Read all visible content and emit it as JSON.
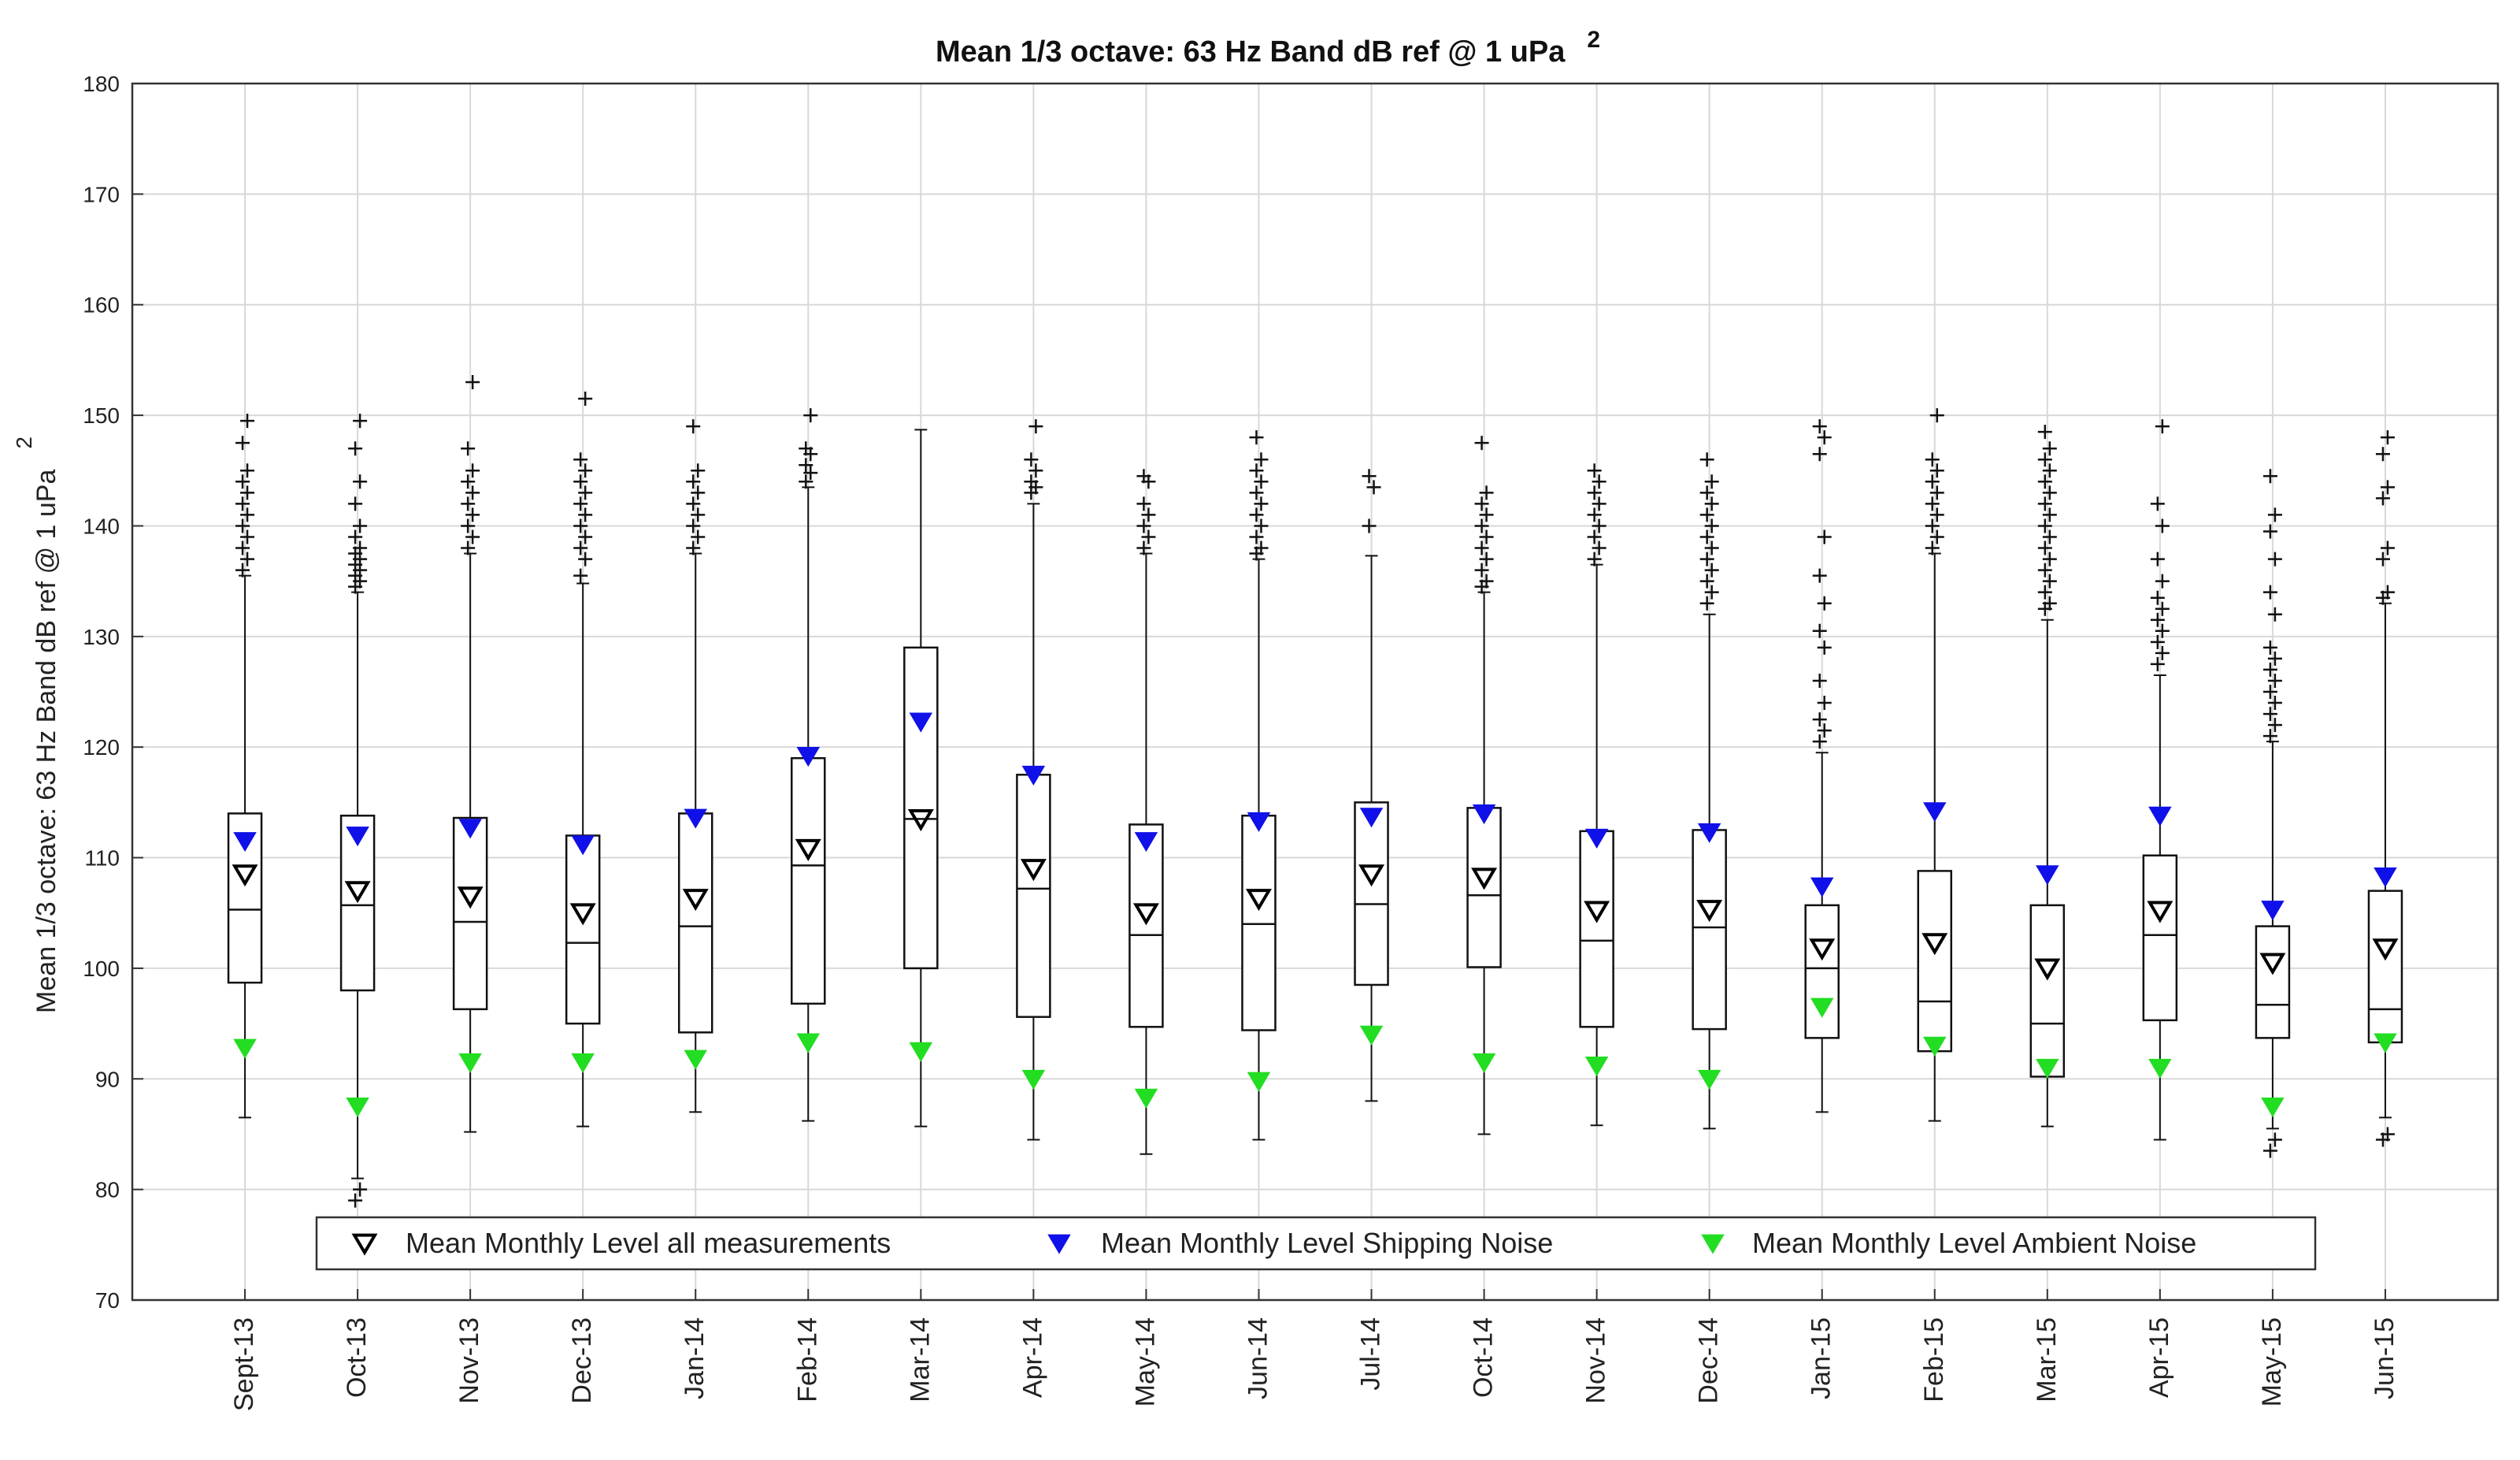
{
  "chart_data": {
    "type": "boxplot",
    "title": "Mean 1/3 octave: 63 Hz Band dB ref @ 1 uPa",
    "title_superscript": "2",
    "ylabel": "Mean 1/3 octave: 63 Hz Band dB ref @ 1 uPa",
    "ylabel_superscript": "2",
    "xlabel": "",
    "ylim": [
      70,
      180
    ],
    "yticks": [
      70,
      80,
      90,
      100,
      110,
      120,
      130,
      140,
      150,
      160,
      170,
      180
    ],
    "grid": true,
    "legend_position": "bottom",
    "categories": [
      "Sept-13",
      "Oct-13",
      "Nov-13",
      "Dec-13",
      "Jan-14",
      "Feb-14",
      "Mar-14",
      "Apr-14",
      "May-14",
      "Jun-14",
      "Jul-14",
      "Oct-14",
      "Nov-14",
      "Dec-14",
      "Jan-15",
      "Feb-15",
      "Mar-15",
      "Apr-15",
      "May-15",
      "Jun-15"
    ],
    "boxes": [
      {
        "whisker_low": 86.5,
        "q1": 98.7,
        "median": 105.3,
        "q3": 114.0,
        "whisker_high": 135.5
      },
      {
        "whisker_low": 81.0,
        "q1": 98.0,
        "median": 105.7,
        "q3": 113.8,
        "whisker_high": 134.0
      },
      {
        "whisker_low": 85.2,
        "q1": 96.3,
        "median": 104.2,
        "q3": 113.6,
        "whisker_high": 137.5
      },
      {
        "whisker_low": 85.7,
        "q1": 95.0,
        "median": 102.3,
        "q3": 112.0,
        "whisker_high": 134.8
      },
      {
        "whisker_low": 87.0,
        "q1": 94.2,
        "median": 103.8,
        "q3": 114.0,
        "whisker_high": 137.5
      },
      {
        "whisker_low": 86.2,
        "q1": 96.8,
        "median": 109.3,
        "q3": 119.0,
        "whisker_high": 143.5
      },
      {
        "whisker_low": 85.7,
        "q1": 100.0,
        "median": 113.5,
        "q3": 129.0,
        "whisker_high": 148.7
      },
      {
        "whisker_low": 84.5,
        "q1": 95.6,
        "median": 107.2,
        "q3": 117.5,
        "whisker_high": 142.0
      },
      {
        "whisker_low": 83.2,
        "q1": 94.7,
        "median": 103.0,
        "q3": 113.0,
        "whisker_high": 137.5
      },
      {
        "whisker_low": 84.5,
        "q1": 94.4,
        "median": 104.0,
        "q3": 113.8,
        "whisker_high": 137.0
      },
      {
        "whisker_low": 88.0,
        "q1": 98.5,
        "median": 105.8,
        "q3": 115.0,
        "whisker_high": 137.3
      },
      {
        "whisker_low": 85.0,
        "q1": 100.1,
        "median": 106.6,
        "q3": 114.5,
        "whisker_high": 134.0
      },
      {
        "whisker_low": 85.8,
        "q1": 94.7,
        "median": 102.5,
        "q3": 112.4,
        "whisker_high": 136.5
      },
      {
        "whisker_low": 85.5,
        "q1": 94.5,
        "median": 103.7,
        "q3": 112.5,
        "whisker_high": 132.0
      },
      {
        "whisker_low": 87.0,
        "q1": 93.7,
        "median": 100.0,
        "q3": 105.7,
        "whisker_high": 119.5
      },
      {
        "whisker_low": 86.2,
        "q1": 92.5,
        "median": 97.0,
        "q3": 108.8,
        "whisker_high": 137.5
      },
      {
        "whisker_low": 85.7,
        "q1": 90.2,
        "median": 95.0,
        "q3": 105.7,
        "whisker_high": 131.5
      },
      {
        "whisker_low": 84.5,
        "q1": 95.3,
        "median": 103.0,
        "q3": 110.2,
        "whisker_high": 126.5
      },
      {
        "whisker_low": 85.5,
        "q1": 93.7,
        "median": 96.7,
        "q3": 103.8,
        "whisker_high": 120.5
      },
      {
        "whisker_low": 86.5,
        "q1": 93.3,
        "median": 96.3,
        "q3": 107.0,
        "whisker_high": 133.0
      }
    ],
    "outliers": [
      [
        136,
        137,
        138,
        139,
        140,
        141,
        142,
        143,
        144,
        145,
        147.5,
        149.5
      ],
      [
        79,
        80,
        134.5,
        135,
        135.5,
        136,
        136.5,
        137,
        137.5,
        138,
        139,
        140,
        142,
        144,
        147,
        149.5
      ],
      [
        138,
        139,
        140,
        141,
        142,
        143,
        144,
        145,
        147,
        153
      ],
      [
        135.5,
        137,
        138,
        139,
        140,
        141,
        142,
        143,
        144,
        145,
        146,
        151.5
      ],
      [
        138,
        139,
        140,
        141,
        142,
        143,
        144,
        145,
        149
      ],
      [
        144,
        144.8,
        145.5,
        146.5,
        147,
        150
      ],
      [],
      [
        143,
        143.5,
        144,
        145,
        146,
        149
      ],
      [
        138,
        139,
        140,
        141,
        142,
        144,
        144.5
      ],
      [
        137.5,
        138,
        139,
        140,
        141,
        142,
        143,
        144,
        145,
        146,
        148
      ],
      [
        140,
        143.5,
        144.5
      ],
      [
        134.5,
        135,
        136,
        137,
        138,
        139,
        140,
        141,
        142,
        143,
        147.5
      ],
      [
        137,
        138,
        139,
        140,
        141,
        142,
        143,
        144,
        145
      ],
      [
        133,
        134,
        135,
        136,
        137,
        138,
        139,
        140,
        141,
        142,
        143,
        144,
        146
      ],
      [
        120.5,
        121.5,
        122.5,
        124,
        126,
        129,
        130.5,
        133,
        135.5,
        139,
        146.5,
        148,
        149
      ],
      [
        138,
        139,
        140,
        141,
        142,
        143,
        144,
        145,
        146,
        150
      ],
      [
        132.5,
        133,
        134,
        135,
        136,
        137,
        138,
        139,
        140,
        141,
        142,
        143,
        144,
        145,
        146,
        147,
        148.5
      ],
      [
        127.5,
        128.5,
        129.5,
        130.5,
        131.5,
        132.5,
        133.5,
        135,
        137,
        140,
        142,
        149
      ],
      [
        83.5,
        84.5,
        121,
        122,
        123,
        124,
        125,
        126,
        127,
        128,
        129,
        132,
        134,
        137,
        139.5,
        141,
        144.5
      ],
      [
        84.5,
        85,
        133.5,
        134,
        137,
        138,
        142.5,
        143.5,
        146.5,
        148
      ]
    ],
    "series": [
      {
        "name": "Mean Monthly Level all measurements",
        "color": "#000000",
        "values": [
          108.5,
          107.0,
          106.5,
          105.0,
          106.3,
          110.8,
          113.5,
          109.0,
          105.0,
          106.3,
          108.5,
          108.2,
          105.2,
          105.3,
          101.8,
          102.3,
          100.0,
          105.2,
          100.5,
          101.8
        ]
      },
      {
        "name": "Mean Monthly Level Shipping Noise",
        "color": "#1010e8",
        "values": [
          111.5,
          112.0,
          112.7,
          111.2,
          113.6,
          119.2,
          122.3,
          117.5,
          111.5,
          113.3,
          113.7,
          114.0,
          111.8,
          112.3,
          107.4,
          114.2,
          108.5,
          113.8,
          105.3,
          108.3
        ]
      },
      {
        "name": "Mean Monthly Level Ambient Noise",
        "color": "#22dd22",
        "values": [
          92.8,
          87.5,
          91.5,
          91.5,
          91.8,
          93.3,
          92.5,
          90.0,
          88.3,
          89.8,
          94.0,
          91.5,
          91.2,
          90.0,
          96.5,
          93.0,
          91.0,
          91.0,
          87.5,
          93.3
        ]
      }
    ]
  }
}
